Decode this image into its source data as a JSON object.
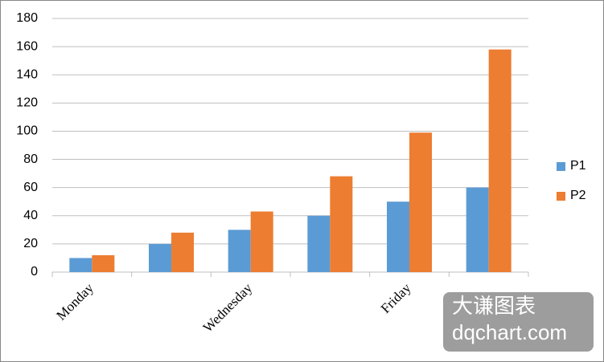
{
  "chart_data": {
    "type": "bar",
    "categories": [
      "Monday",
      null,
      "Wednesday",
      null,
      "Friday",
      null
    ],
    "series": [
      {
        "name": "P1",
        "color": "#5b9bd5",
        "values": [
          10,
          20,
          30,
          40,
          50,
          60
        ]
      },
      {
        "name": "P2",
        "color": "#ed7d31",
        "values": [
          12,
          28,
          43,
          68,
          99,
          158
        ]
      }
    ],
    "ylim": [
      0,
      180
    ],
    "yticks": [
      0,
      20,
      40,
      60,
      80,
      100,
      120,
      140,
      160,
      180
    ],
    "grid": true,
    "legend": "right",
    "annotations": [
      "大谦图表",
      "dqchart.com"
    ]
  }
}
